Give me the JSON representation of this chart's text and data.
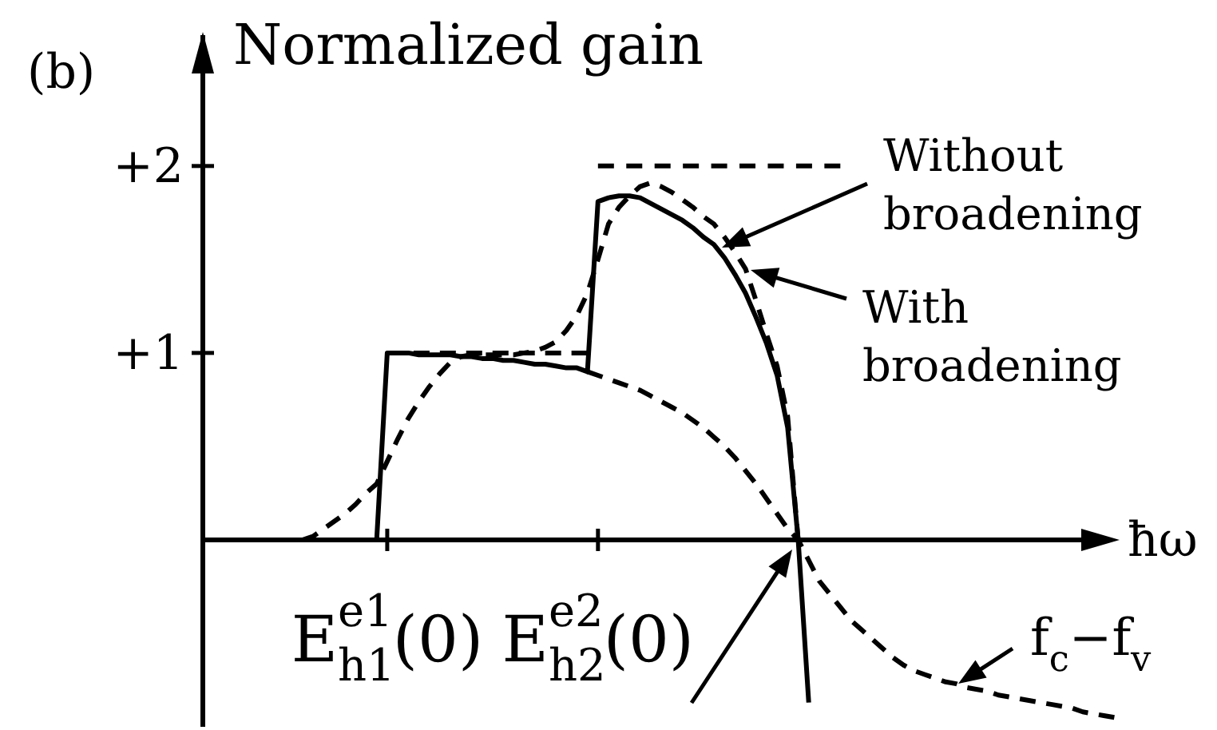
{
  "chart_data": {
    "type": "line",
    "ylabel": "Normalized gain",
    "xlabel": "ħω",
    "categories": [
      null,
      null,
      null,
      null,
      null,
      null,
      null,
      null,
      null,
      null,
      null,
      null,
      null,
      null,
      null,
      null,
      null,
      "E$_{h1}$$^{e1}$(0)",
      null,
      null,
      null,
      null,
      null,
      null,
      null,
      null,
      null,
      null,
      null,
      null,
      null,
      null,
      null,
      null,
      null,
      null,
      null,
      "E$_{h2}$$^{e2}$(0)",
      null,
      null,
      null,
      null,
      null,
      null,
      null,
      null,
      null,
      null,
      null,
      null,
      null,
      null,
      null,
      null,
      null,
      null,
      null,
      null,
      null,
      null,
      null,
      null,
      null,
      null,
      null,
      null,
      null,
      null,
      null,
      null,
      null,
      null,
      null,
      null,
      null,
      null,
      null,
      null,
      null,
      null,
      null,
      null,
      null,
      null,
      null,
      null,
      null
    ],
    "ylim": [
      -1,
      2.7
    ],
    "yticks": [
      {
        "value": 1,
        "label": "+1"
      },
      {
        "value": 2,
        "label": "+2"
      }
    ],
    "series": [
      {
        "color": "#000000",
        "line_style": "solid",
        "values": [
          null,
          null,
          null,
          null,
          null,
          null,
          null,
          null,
          null,
          null,
          null,
          null,
          null,
          null,
          null,
          null,
          0,
          1.0,
          1.0,
          1.0,
          0.99,
          0.99,
          0.99,
          0.99,
          0.98,
          0.98,
          0.97,
          0.97,
          0.96,
          0.96,
          0.95,
          0.94,
          0.94,
          0.93,
          0.92,
          0.92,
          0.9,
          1.81,
          1.83,
          1.84,
          1.84,
          1.83,
          1.8,
          1.77,
          1.74,
          1.71,
          1.67,
          1.62,
          1.58,
          1.51,
          1.42,
          1.32,
          1.19,
          1.05,
          0.88,
          0.6,
          0,
          -0.87,
          null,
          null,
          null,
          null,
          null,
          null,
          null,
          null,
          null,
          null,
          null,
          null,
          null,
          null,
          null,
          null,
          null,
          null,
          null,
          null,
          null,
          null,
          null,
          null,
          null,
          null,
          null,
          null,
          null
        ]
      },
      {
        "color": "#000000",
        "line_style": "dashed",
        "values": [
          null,
          null,
          null,
          null,
          null,
          null,
          null,
          null,
          null,
          0,
          0.02,
          0.06,
          0.1,
          0.14,
          0.19,
          0.25,
          0.3,
          0.42,
          0.54,
          0.65,
          0.74,
          0.82,
          0.89,
          0.95,
          0.98,
          0.99,
          0.99,
          0.99,
          0.99,
          0.99,
          1.0,
          1.01,
          1.03,
          1.06,
          1.12,
          1.2,
          1.32,
          1.5,
          1.69,
          1.78,
          1.84,
          1.89,
          1.91,
          1.89,
          1.86,
          1.82,
          1.78,
          1.73,
          1.69,
          1.62,
          1.54,
          1.45,
          1.28,
          1.1,
          0.93,
          0.66,
          0,
          null,
          null,
          null,
          null,
          null,
          null,
          null,
          null,
          null,
          null,
          null,
          null,
          null,
          null,
          null,
          null,
          null,
          null,
          null,
          null,
          null,
          null,
          null,
          null,
          null,
          null,
          null,
          null,
          null,
          null
        ]
      },
      {
        "color": "#000000",
        "line_style": "dashed",
        "values": [
          null,
          null,
          null,
          null,
          null,
          null,
          null,
          null,
          null,
          null,
          null,
          null,
          null,
          null,
          null,
          null,
          null,
          1,
          1,
          1,
          1,
          1,
          1,
          1,
          1,
          1,
          1,
          1,
          1,
          1,
          1,
          1,
          1,
          1,
          1,
          1,
          1,
          null,
          null,
          null,
          null,
          null,
          null,
          null,
          null,
          null,
          null,
          null,
          null,
          null,
          null,
          null,
          null,
          null,
          null,
          null,
          null,
          null,
          null,
          null,
          null,
          null,
          null,
          null,
          null,
          null,
          null,
          null,
          null,
          null,
          null,
          null,
          null,
          null,
          null,
          null,
          null,
          null,
          null,
          null,
          null,
          null,
          null,
          null,
          null,
          null,
          null
        ]
      },
      {
        "color": "#000000",
        "line_style": "dashed",
        "values": [
          null,
          null,
          null,
          null,
          null,
          null,
          null,
          null,
          null,
          null,
          null,
          null,
          null,
          null,
          null,
          null,
          null,
          null,
          null,
          null,
          null,
          null,
          null,
          null,
          null,
          null,
          null,
          null,
          null,
          null,
          null,
          null,
          null,
          null,
          null,
          null,
          null,
          2,
          2,
          2,
          2,
          2,
          2,
          2,
          2,
          2,
          2,
          2,
          2,
          2,
          2,
          2,
          2,
          2,
          2,
          2,
          2,
          2,
          2,
          2,
          2,
          null,
          null,
          null,
          null,
          null,
          null,
          null,
          null,
          null,
          null,
          null,
          null,
          null,
          null,
          null,
          null,
          null,
          null,
          null,
          null,
          null,
          null,
          null,
          null,
          null,
          null
        ]
      },
      {
        "color": "#000000",
        "line_style": "dashed",
        "values": [
          null,
          null,
          null,
          null,
          null,
          null,
          null,
          null,
          null,
          null,
          null,
          null,
          null,
          null,
          null,
          null,
          null,
          null,
          null,
          null,
          null,
          null,
          null,
          null,
          null,
          null,
          null,
          null,
          null,
          null,
          null,
          null,
          null,
          null,
          null,
          null,
          0.9,
          0.88,
          0.86,
          0.84,
          0.82,
          0.8,
          0.77,
          0.74,
          0.71,
          0.68,
          0.64,
          0.6,
          0.55,
          0.5,
          0.44,
          0.37,
          0.3,
          0.22,
          0.14,
          0.06,
          0,
          -0.11,
          -0.22,
          -0.29,
          -0.36,
          -0.43,
          -0.48,
          -0.53,
          -0.58,
          -0.63,
          -0.67,
          -0.7,
          -0.72,
          -0.74,
          -0.76,
          -0.77,
          -0.79,
          -0.8,
          -0.81,
          -0.83,
          -0.84,
          -0.85,
          -0.86,
          -0.87,
          -0.88,
          -0.89,
          -0.9,
          -0.92,
          -0.93,
          -0.94,
          -0.95
        ]
      }
    ],
    "annotations": [
      "(b)",
      "Without broadening",
      "With broadening",
      "f$_{c}$−f$_{v}$"
    ]
  }
}
